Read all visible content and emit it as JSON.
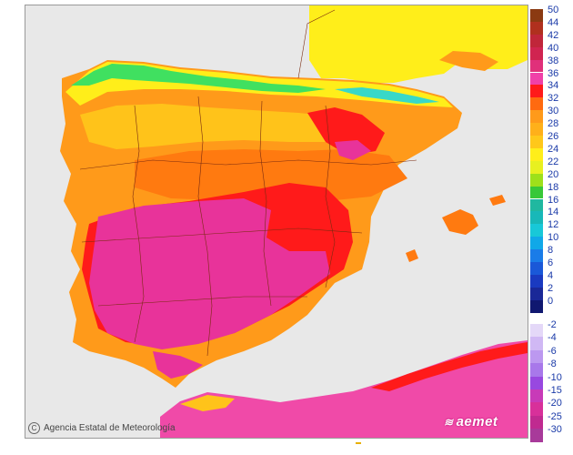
{
  "map": {
    "credit": "Agencia Estatal de Meteorología",
    "brand": "aemet",
    "sea_color": "#e8e8e8",
    "region_colors": {
      "far_south_pink": "#e8339a",
      "deep_red": "#ff1a1a",
      "orange_dark": "#ff7a10",
      "orange": "#ff9a1a",
      "yellow_orange": "#ffc31a",
      "yellow": "#ffee1a",
      "lime": "#c8f020",
      "green": "#40e060",
      "cyan": "#38d8c8",
      "africa_pink": "#f04aa8"
    }
  },
  "legend_upper": {
    "labels": [
      "50",
      "44",
      "42",
      "40",
      "38",
      "36",
      "34",
      "32",
      "30",
      "28",
      "26",
      "24",
      "22",
      "20",
      "18",
      "16",
      "14",
      "12",
      "10",
      "8",
      "6",
      "4",
      "2",
      "0"
    ],
    "colors": [
      "#8b3a12",
      "#b0301e",
      "#c0263a",
      "#d02450",
      "#e0307a",
      "#f040a8",
      "#ff1a1a",
      "#ff6a10",
      "#ff9a1a",
      "#ffb01a",
      "#ffc81a",
      "#ffee1a",
      "#e8f020",
      "#9ee01a",
      "#38c838",
      "#20b8a0",
      "#18b8b8",
      "#18c8d8",
      "#10a8e8",
      "#1a7ce8",
      "#1a58d8",
      "#1a3ac0",
      "#1a2898",
      "#101870"
    ]
  },
  "legend_lower": {
    "labels": [
      "-2",
      "-4",
      "-6",
      "-8",
      "-10",
      "-15",
      "-20",
      "-25",
      "-30"
    ],
    "colors": [
      "#e4d8f8",
      "#d0b8f4",
      "#bc98f0",
      "#a878ea",
      "#9848e0",
      "#c83ab8",
      "#d8309a",
      "#c02a90",
      "#a83a9a"
    ]
  }
}
